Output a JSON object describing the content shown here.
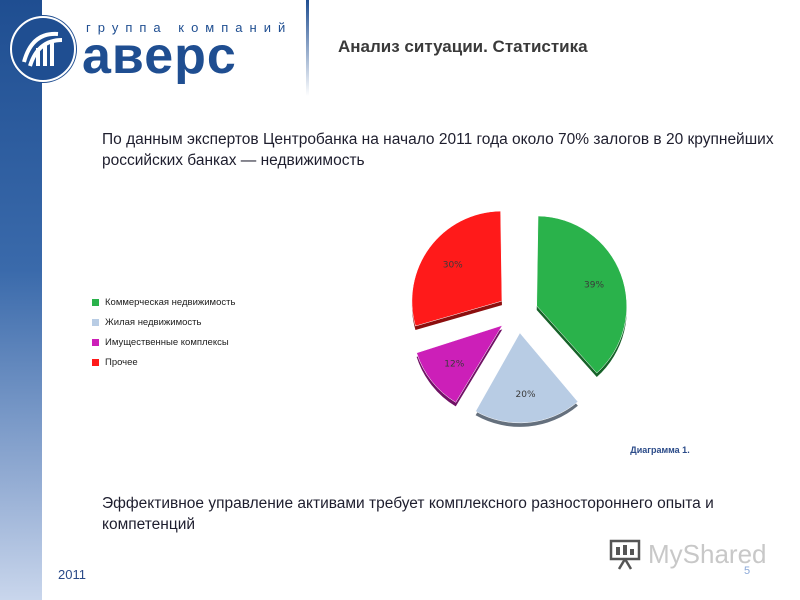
{
  "brand": {
    "tagline": "группа компаний",
    "name": "аверс"
  },
  "slide": {
    "title": "Анализ ситуации. Статистика",
    "intro": "По данным экспертов Центробанка на начало 2011 года около 70% залогов в 20 крупнейших российских банках — недвижимость",
    "outro": "Эффективное управление активами требует комплексного разностороннего опыта и компетенций",
    "year": "2011",
    "page_number": "5",
    "caption": "Диаграмма 1."
  },
  "watermark": {
    "text": "MyShared",
    "icon": "presentation-icon"
  },
  "colors": {
    "brand_blue": "#1f4e91"
  },
  "chart_data": {
    "type": "pie",
    "title": "",
    "categories": [
      "Коммерческая недвижимость",
      "Жилая недвижимость",
      "Имущественные комплексы",
      "Прочее"
    ],
    "values": [
      39,
      20,
      12,
      30
    ],
    "value_labels": [
      "39%",
      "20%",
      "12%",
      "30%"
    ],
    "colors": [
      "#2ab24b",
      "#b8cce4",
      "#cc1fb8",
      "#ff1a1a"
    ],
    "exploded": true,
    "legend_position": "left"
  }
}
